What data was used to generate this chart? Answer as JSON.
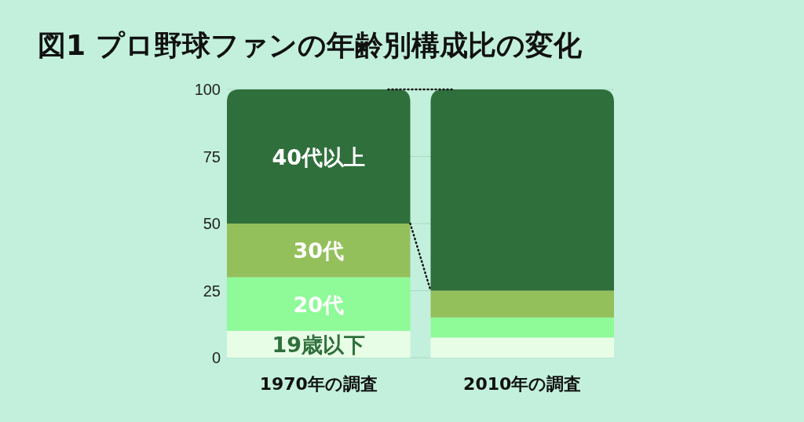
{
  "chart_data": {
    "type": "bar",
    "title": "図1  プロ野球ファンの年齢別構成比の変化",
    "stacked": true,
    "grid": "y",
    "categories": [
      "1970年の調査",
      "2010年の調査"
    ],
    "series": [
      {
        "name": "19歳以下",
        "color": "#e8fde6",
        "values": [
          10,
          7.5
        ]
      },
      {
        "name": "20代",
        "color": "#8efa98",
        "values": [
          20,
          7.5
        ]
      },
      {
        "name": "30代",
        "color": "#94c05c",
        "values": [
          20,
          10
        ]
      },
      {
        "name": "40代以上",
        "color": "#2f6f3c",
        "values": [
          50,
          75
        ]
      }
    ],
    "ylim": [
      0,
      100
    ],
    "yticks": [
      0,
      25,
      50,
      75,
      100
    ]
  }
}
